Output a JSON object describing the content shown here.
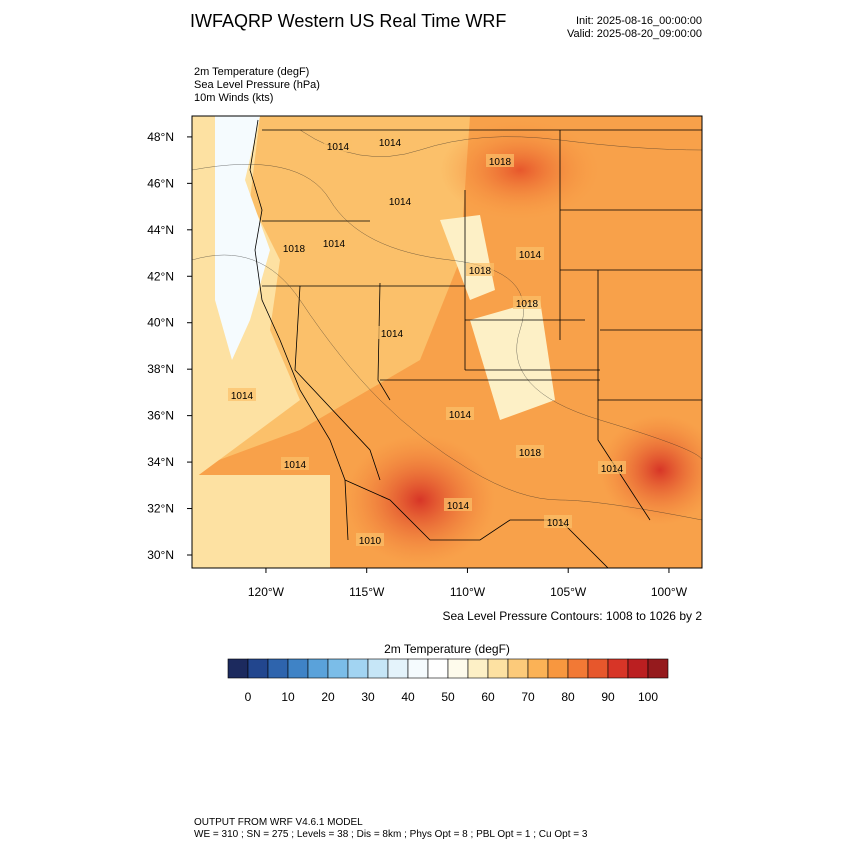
{
  "header": {
    "title": "IWFAQRP Western US Real Time WRF",
    "init": "Init: 2025-08-16_00:00:00",
    "valid": "Valid: 2025-08-20_09:00:00",
    "fields": [
      "2m Temperature   (degF)",
      "Sea Level Pressure   (hPa)",
      "10m Winds   (kts)"
    ]
  },
  "map": {
    "lat_range": [
      29.44,
      48.9
    ],
    "lon_range": [
      -123.67,
      -98.36
    ],
    "lat_ticks": [
      {
        "value": 30,
        "label": "30°N"
      },
      {
        "value": 32,
        "label": "32°N"
      },
      {
        "value": 34,
        "label": "34°N"
      },
      {
        "value": 36,
        "label": "36°N"
      },
      {
        "value": 38,
        "label": "38°N"
      },
      {
        "value": 40,
        "label": "40°N"
      },
      {
        "value": 42,
        "label": "42°N"
      },
      {
        "value": 44,
        "label": "44°N"
      },
      {
        "value": 46,
        "label": "46°N"
      },
      {
        "value": 48,
        "label": "48°N"
      }
    ],
    "lon_ticks": [
      {
        "value": -120,
        "label": "120°W"
      },
      {
        "value": -115,
        "label": "115°W"
      },
      {
        "value": -110,
        "label": "110°W"
      },
      {
        "value": -105,
        "label": "105°W"
      },
      {
        "value": -100,
        "label": "100°W"
      }
    ],
    "contour_labels": [
      "1014",
      "1014",
      "1018",
      "1014",
      "1018",
      "1014",
      "1014",
      "1018",
      "1014",
      "1018",
      "1014",
      "1014",
      "1018",
      "1014",
      "1014",
      "1014",
      "1014",
      "1010"
    ],
    "contour_note": "Sea Level Pressure Contours: 1008 to 1026 by 2"
  },
  "colorbar": {
    "title": "2m Temperature  (degF)",
    "ticks": [
      0,
      10,
      20,
      30,
      40,
      50,
      60,
      70,
      80,
      90,
      100
    ],
    "colors": [
      "#1c2a5e",
      "#22468e",
      "#2e64ad",
      "#3f83c6",
      "#5aa2da",
      "#7bbde8",
      "#a2d4f2",
      "#c6e6f7",
      "#e4f3fb",
      "#f5fbfe",
      "#ffffff",
      "#fefbec",
      "#fdf0c6",
      "#fde1a2",
      "#fcca7a",
      "#fbb256",
      "#f8973f",
      "#f27935",
      "#e7572c",
      "#d73527",
      "#bb1f21",
      "#951a1d"
    ]
  },
  "footer": {
    "line1": "OUTPUT FROM WRF V4.6.1 MODEL",
    "line2": "WE = 310 ; SN = 275 ; Levels = 38 ; Dis = 8km ; Phys Opt = 8 ; PBL Opt = 1 ; Cu Opt = 3"
  }
}
